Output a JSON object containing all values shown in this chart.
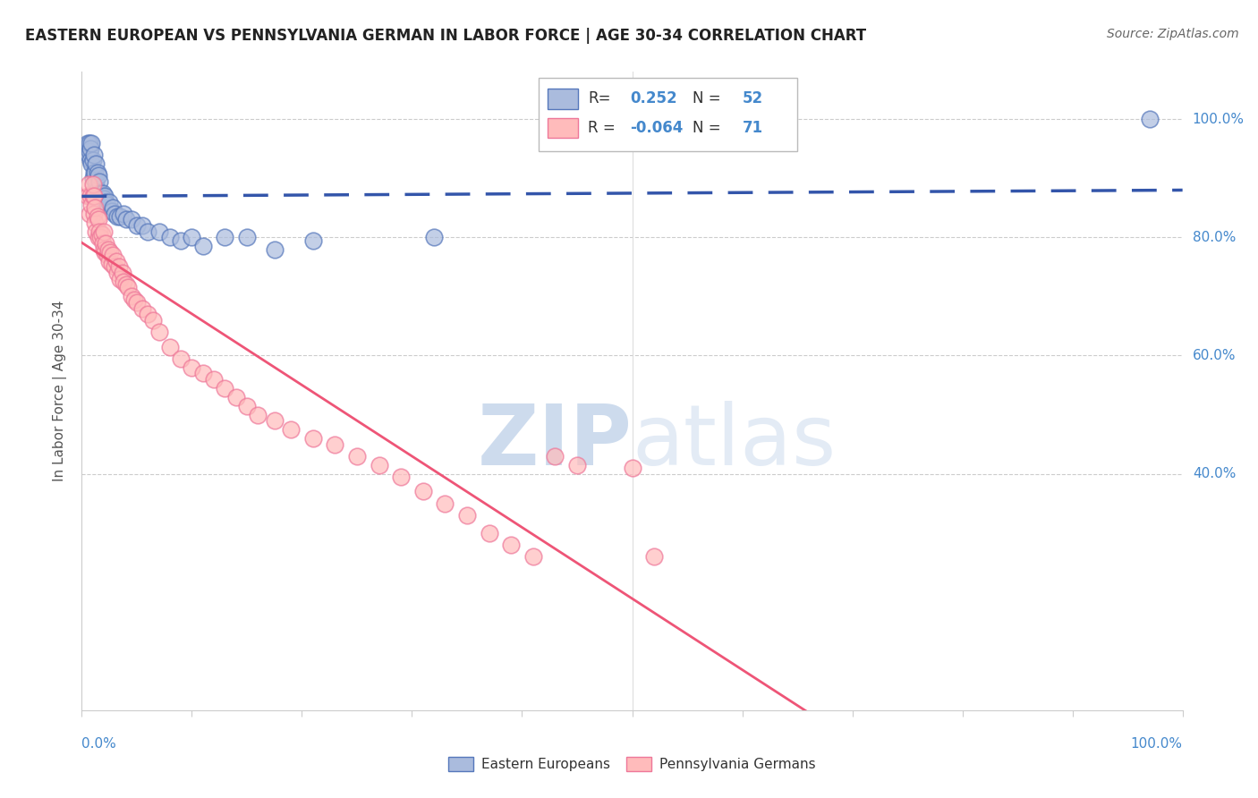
{
  "title": "EASTERN EUROPEAN VS PENNSYLVANIA GERMAN IN LABOR FORCE | AGE 30-34 CORRELATION CHART",
  "source": "Source: ZipAtlas.com",
  "ylabel": "In Labor Force | Age 30-34",
  "blue_R": "0.252",
  "blue_N": "52",
  "pink_R": "-0.064",
  "pink_N": "71",
  "blue_color": "#AABBDD",
  "pink_color": "#FFBBBB",
  "blue_edge_color": "#5577BB",
  "pink_edge_color": "#EE7799",
  "blue_line_color": "#3355AA",
  "pink_line_color": "#EE5577",
  "label_color": "#4488CC",
  "title_color": "#222222",
  "blue_points_x": [
    0.005,
    0.006,
    0.007,
    0.007,
    0.008,
    0.008,
    0.009,
    0.009,
    0.01,
    0.01,
    0.011,
    0.011,
    0.012,
    0.012,
    0.013,
    0.013,
    0.014,
    0.014,
    0.015,
    0.015,
    0.016,
    0.016,
    0.017,
    0.018,
    0.019,
    0.02,
    0.021,
    0.022,
    0.023,
    0.025,
    0.027,
    0.028,
    0.03,
    0.032,
    0.035,
    0.038,
    0.04,
    0.045,
    0.05,
    0.055,
    0.06,
    0.07,
    0.08,
    0.09,
    0.1,
    0.11,
    0.13,
    0.15,
    0.175,
    0.21,
    0.32,
    0.97
  ],
  "blue_points_y": [
    0.96,
    0.94,
    0.945,
    0.96,
    0.93,
    0.95,
    0.925,
    0.96,
    0.9,
    0.93,
    0.91,
    0.94,
    0.88,
    0.91,
    0.895,
    0.925,
    0.88,
    0.91,
    0.875,
    0.905,
    0.87,
    0.895,
    0.875,
    0.87,
    0.875,
    0.865,
    0.87,
    0.86,
    0.855,
    0.86,
    0.845,
    0.85,
    0.84,
    0.835,
    0.835,
    0.84,
    0.83,
    0.83,
    0.82,
    0.82,
    0.81,
    0.81,
    0.8,
    0.795,
    0.8,
    0.785,
    0.8,
    0.8,
    0.78,
    0.795,
    0.8,
    1.0
  ],
  "pink_points_x": [
    0.005,
    0.006,
    0.007,
    0.008,
    0.009,
    0.01,
    0.01,
    0.011,
    0.011,
    0.012,
    0.012,
    0.013,
    0.014,
    0.015,
    0.015,
    0.016,
    0.017,
    0.018,
    0.019,
    0.02,
    0.02,
    0.021,
    0.022,
    0.023,
    0.024,
    0.025,
    0.026,
    0.027,
    0.028,
    0.03,
    0.031,
    0.032,
    0.034,
    0.035,
    0.037,
    0.038,
    0.04,
    0.042,
    0.045,
    0.048,
    0.05,
    0.055,
    0.06,
    0.065,
    0.07,
    0.08,
    0.09,
    0.1,
    0.11,
    0.12,
    0.13,
    0.14,
    0.15,
    0.16,
    0.175,
    0.19,
    0.21,
    0.23,
    0.25,
    0.27,
    0.29,
    0.31,
    0.33,
    0.35,
    0.37,
    0.39,
    0.41,
    0.43,
    0.45,
    0.5,
    0.52
  ],
  "pink_points_y": [
    0.87,
    0.89,
    0.84,
    0.87,
    0.855,
    0.87,
    0.89,
    0.84,
    0.87,
    0.825,
    0.85,
    0.81,
    0.835,
    0.8,
    0.83,
    0.81,
    0.8,
    0.805,
    0.79,
    0.78,
    0.81,
    0.775,
    0.79,
    0.77,
    0.78,
    0.76,
    0.775,
    0.755,
    0.77,
    0.75,
    0.76,
    0.74,
    0.75,
    0.73,
    0.74,
    0.725,
    0.72,
    0.715,
    0.7,
    0.695,
    0.69,
    0.68,
    0.67,
    0.66,
    0.64,
    0.615,
    0.595,
    0.58,
    0.57,
    0.56,
    0.545,
    0.53,
    0.515,
    0.5,
    0.49,
    0.475,
    0.46,
    0.45,
    0.43,
    0.415,
    0.395,
    0.37,
    0.35,
    0.33,
    0.3,
    0.28,
    0.26,
    0.43,
    0.415,
    0.41,
    0.26
  ]
}
